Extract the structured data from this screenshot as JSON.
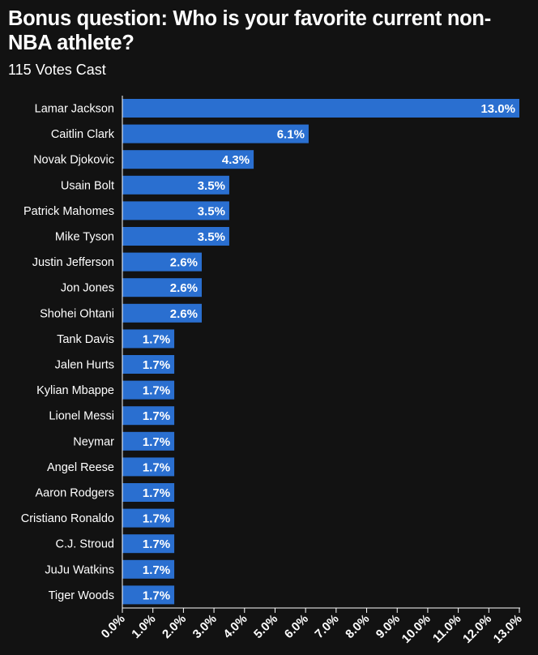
{
  "header": {
    "title": "Bonus question: Who is your favorite current non-NBA athlete?",
    "subtitle": "115 Votes Cast"
  },
  "colors": {
    "background": "#121212",
    "bar": "#2a6fd0",
    "text": "#ffffff",
    "axis": "#ffffff"
  },
  "chart_data": {
    "type": "bar",
    "orientation": "horizontal",
    "title": "Bonus question: Who is your favorite current non-NBA athlete?",
    "subtitle": "115 Votes Cast",
    "categories": [
      "Lamar Jackson",
      "Caitlin Clark",
      "Novak Djokovic",
      "Usain Bolt",
      "Patrick Mahomes",
      "Mike Tyson",
      "Justin Jefferson",
      "Jon Jones",
      "Shohei Ohtani",
      "Tank Davis",
      "Jalen Hurts",
      "Kylian Mbappe",
      "Lionel Messi",
      "Neymar",
      "Angel Reese",
      "Aaron Rodgers",
      "Cristiano Ronaldo",
      "C.J. Stroud",
      "JuJu Watkins",
      "Tiger Woods"
    ],
    "values": [
      13.0,
      6.1,
      4.3,
      3.5,
      3.5,
      3.5,
      2.6,
      2.6,
      2.6,
      1.7,
      1.7,
      1.7,
      1.7,
      1.7,
      1.7,
      1.7,
      1.7,
      1.7,
      1.7,
      1.7
    ],
    "value_labels": [
      "13.0%",
      "6.1%",
      "4.3%",
      "3.5%",
      "3.5%",
      "3.5%",
      "2.6%",
      "2.6%",
      "2.6%",
      "1.7%",
      "1.7%",
      "1.7%",
      "1.7%",
      "1.7%",
      "1.7%",
      "1.7%",
      "1.7%",
      "1.7%",
      "1.7%",
      "1.7%"
    ],
    "xlim": [
      0,
      13
    ],
    "xticks": [
      0,
      1,
      2,
      3,
      4,
      5,
      6,
      7,
      8,
      9,
      10,
      11,
      12,
      13
    ],
    "xtick_labels": [
      "0.0%",
      "1.0%",
      "2.0%",
      "3.0%",
      "4.0%",
      "5.0%",
      "6.0%",
      "7.0%",
      "8.0%",
      "9.0%",
      "10.0%",
      "11.0%",
      "12.0%",
      "13.0%"
    ],
    "grid": false,
    "legend": "none"
  }
}
